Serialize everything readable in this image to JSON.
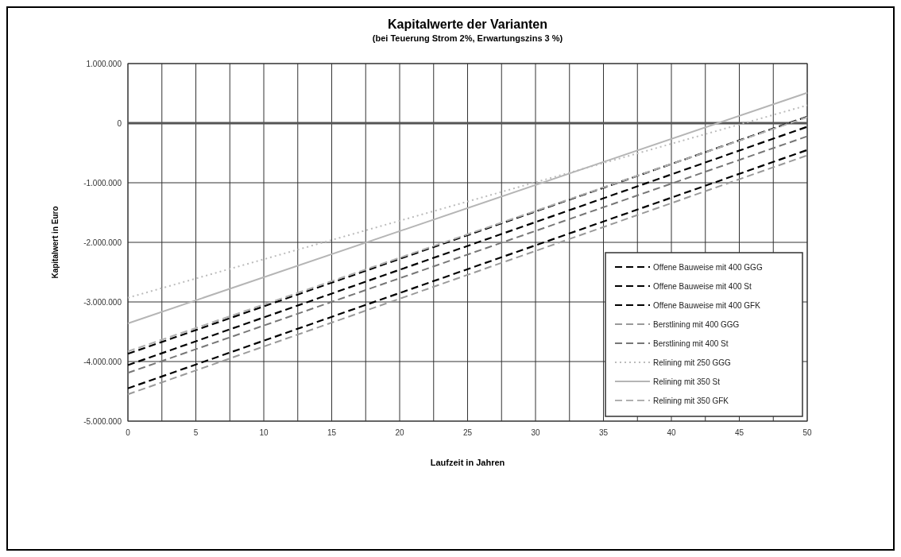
{
  "chart_data": {
    "type": "line",
    "title": "Kapitalwerte der Varianten",
    "subtitle": "(bei Teuerung  Strom 2%, Erwartungszins  3 %)",
    "xlabel": "Laufzeit in Jahren",
    "ylabel": "Kapitalwert in Euro",
    "x": [
      0,
      50
    ],
    "series": [
      {
        "name": "Offene Bauweise mit 400 GGG",
        "color": "#000000",
        "line_style": "dashed",
        "values": [
          -4450000,
          -450000
        ]
      },
      {
        "name": "Offene Bauweise mit 400 St",
        "color": "#000000",
        "line_style": "dashed",
        "values": [
          -3870000,
          110000
        ]
      },
      {
        "name": "Offene Bauweise mit 400 GFK",
        "color": "#000000",
        "line_style": "dashed",
        "values": [
          -4060000,
          -60000
        ]
      },
      {
        "name": "Berstlining mit 400 GGG",
        "color": "#9a9a9a",
        "line_style": "dashed",
        "values": [
          -4550000,
          -540000
        ]
      },
      {
        "name": "Berstlining mit 400 St",
        "color": "#777777",
        "line_style": "dashed",
        "values": [
          -4190000,
          -220000
        ]
      },
      {
        "name": "Relining mit 250 GGG",
        "color": "#bbbbbb",
        "line_style": "dotted",
        "values": [
          -2930000,
          300000
        ]
      },
      {
        "name": "Relining mit 350 St",
        "color": "#b5b5b5",
        "line_style": "solid",
        "values": [
          -3360000,
          510000
        ]
      },
      {
        "name": "Relining mit 350 GFK",
        "color": "#b0b0b0",
        "line_style": "dashed",
        "values": [
          -3830000,
          100000
        ]
      }
    ],
    "xlim": [
      0,
      50
    ],
    "ylim": [
      -5000000,
      1000000
    ],
    "xticks": [
      0,
      {
        "value": 2.5,
        "label": null
      },
      5,
      {
        "value": 7.5,
        "label": null
      },
      10,
      {
        "value": 12.5,
        "label": null
      },
      15,
      {
        "value": 17.5,
        "label": null
      },
      20,
      {
        "value": 22.5,
        "label": null
      },
      25,
      {
        "value": 27.5,
        "label": null
      },
      30,
      {
        "value": 32.5,
        "label": null
      },
      35,
      {
        "value": 37.5,
        "label": null
      },
      40,
      {
        "value": 42.5,
        "label": null
      },
      45,
      {
        "value": 47.5,
        "label": null
      },
      50
    ],
    "yticks": [
      {
        "value": -5000000,
        "label": "-5.000.000"
      },
      {
        "value": -4000000,
        "label": "-4.000.000"
      },
      {
        "value": -3000000,
        "label": "-3.000.000"
      },
      {
        "value": -2000000,
        "label": "-2.000.000"
      },
      {
        "value": -1000000,
        "label": "-1.000.000"
      },
      0,
      {
        "value": 1000000,
        "label": "1.000.000"
      }
    ],
    "ref_lines": [
      {
        "axis": "y",
        "value": 0,
        "color": "#555555"
      }
    ],
    "grid": true,
    "legend": "bottom right",
    "marker": "none"
  }
}
